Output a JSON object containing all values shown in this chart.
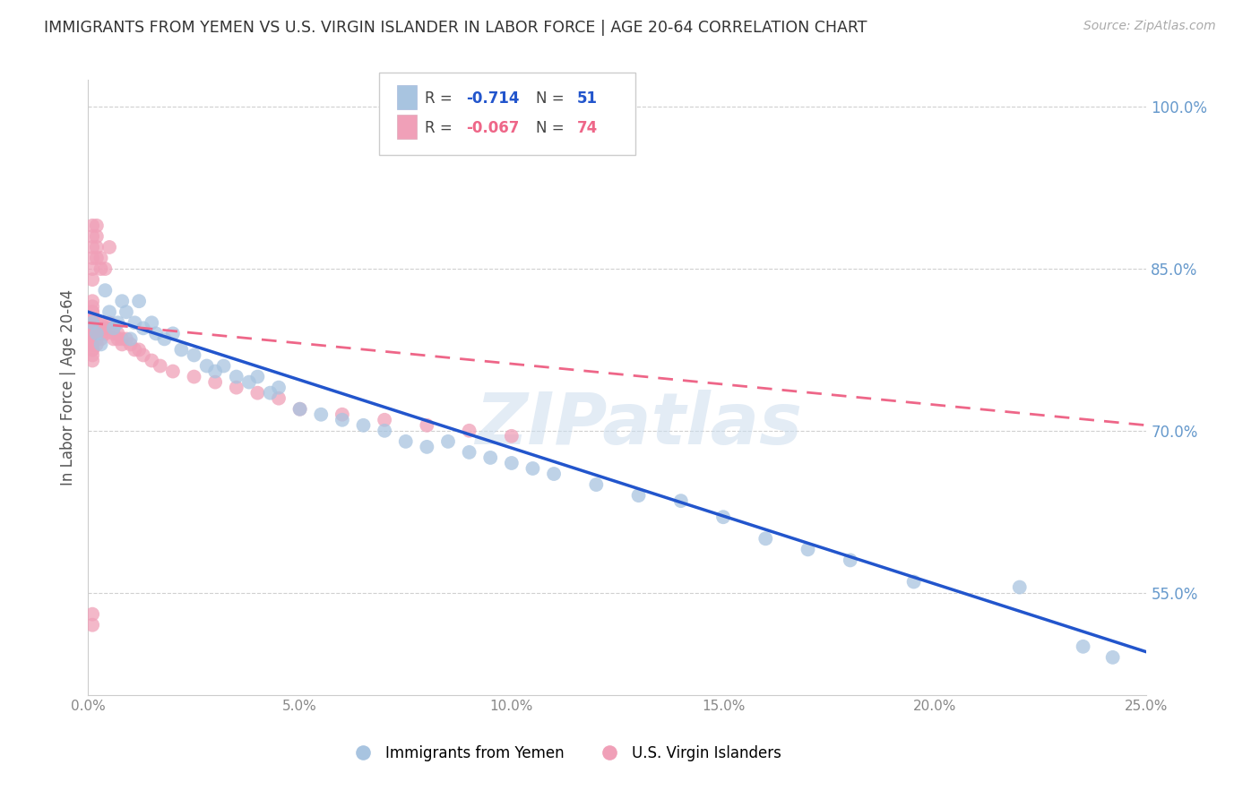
{
  "title": "IMMIGRANTS FROM YEMEN VS U.S. VIRGIN ISLANDER IN LABOR FORCE | AGE 20-64 CORRELATION CHART",
  "source": "Source: ZipAtlas.com",
  "ylabel": "In Labor Force | Age 20-64",
  "xlim": [
    0.0,
    0.25
  ],
  "ylim": [
    0.455,
    1.025
  ],
  "right_yticks": [
    1.0,
    0.85,
    0.7,
    0.55
  ],
  "right_yticklabels": [
    "100.0%",
    "85.0%",
    "70.0%",
    "55.0%"
  ],
  "xticks": [
    0.0,
    0.05,
    0.1,
    0.15,
    0.2,
    0.25
  ],
  "grid_color": "#d0d0d0",
  "background_color": "#ffffff",
  "watermark": "ZIPatlas",
  "blue_color": "#a8c4e0",
  "pink_color": "#f0a0b8",
  "blue_line_color": "#2255cc",
  "pink_line_color": "#ee6688",
  "blue_scatter_x": [
    0.001,
    0.002,
    0.003,
    0.004,
    0.005,
    0.006,
    0.007,
    0.008,
    0.009,
    0.01,
    0.011,
    0.012,
    0.013,
    0.015,
    0.016,
    0.018,
    0.02,
    0.022,
    0.025,
    0.028,
    0.03,
    0.032,
    0.035,
    0.038,
    0.04,
    0.043,
    0.045,
    0.05,
    0.055,
    0.06,
    0.065,
    0.07,
    0.075,
    0.08,
    0.085,
    0.09,
    0.095,
    0.1,
    0.105,
    0.11,
    0.12,
    0.13,
    0.14,
    0.15,
    0.16,
    0.17,
    0.18,
    0.195,
    0.22,
    0.235,
    0.242
  ],
  "blue_scatter_y": [
    0.8,
    0.79,
    0.78,
    0.83,
    0.81,
    0.795,
    0.8,
    0.82,
    0.81,
    0.785,
    0.8,
    0.82,
    0.795,
    0.8,
    0.79,
    0.785,
    0.79,
    0.775,
    0.77,
    0.76,
    0.755,
    0.76,
    0.75,
    0.745,
    0.75,
    0.735,
    0.74,
    0.72,
    0.715,
    0.71,
    0.705,
    0.7,
    0.69,
    0.685,
    0.69,
    0.68,
    0.675,
    0.67,
    0.665,
    0.66,
    0.65,
    0.64,
    0.635,
    0.62,
    0.6,
    0.59,
    0.58,
    0.56,
    0.555,
    0.5,
    0.49
  ],
  "pink_scatter_x": [
    0.001,
    0.001,
    0.001,
    0.001,
    0.001,
    0.001,
    0.001,
    0.001,
    0.001,
    0.001,
    0.001,
    0.001,
    0.001,
    0.001,
    0.001,
    0.001,
    0.001,
    0.001,
    0.001,
    0.001,
    0.002,
    0.002,
    0.002,
    0.002,
    0.002,
    0.003,
    0.003,
    0.003,
    0.003,
    0.004,
    0.004,
    0.005,
    0.005,
    0.006,
    0.006,
    0.007,
    0.007,
    0.008,
    0.008,
    0.009,
    0.01,
    0.011,
    0.012,
    0.013,
    0.015,
    0.017,
    0.02,
    0.025,
    0.03,
    0.035,
    0.04,
    0.045,
    0.05,
    0.06,
    0.07,
    0.08,
    0.09,
    0.1,
    0.001,
    0.001,
    0.001,
    0.001,
    0.002,
    0.002,
    0.003,
    0.003,
    0.004,
    0.005,
    0.001,
    0.001,
    0.002,
    0.002,
    0.001,
    0.001
  ],
  "pink_scatter_y": [
    0.8,
    0.81,
    0.795,
    0.785,
    0.78,
    0.775,
    0.79,
    0.8,
    0.82,
    0.815,
    0.81,
    0.805,
    0.8,
    0.795,
    0.79,
    0.785,
    0.78,
    0.775,
    0.77,
    0.765,
    0.8,
    0.795,
    0.79,
    0.785,
    0.78,
    0.8,
    0.795,
    0.79,
    0.785,
    0.795,
    0.79,
    0.8,
    0.795,
    0.79,
    0.785,
    0.79,
    0.785,
    0.785,
    0.78,
    0.785,
    0.78,
    0.775,
    0.775,
    0.77,
    0.765,
    0.76,
    0.755,
    0.75,
    0.745,
    0.74,
    0.735,
    0.73,
    0.72,
    0.715,
    0.71,
    0.705,
    0.7,
    0.695,
    0.87,
    0.86,
    0.85,
    0.84,
    0.87,
    0.86,
    0.86,
    0.85,
    0.85,
    0.87,
    0.88,
    0.89,
    0.89,
    0.88,
    0.53,
    0.52
  ],
  "blue_trend_x": [
    0.0,
    0.25
  ],
  "blue_trend_y": [
    0.81,
    0.495
  ],
  "pink_trend_x": [
    0.0,
    0.25
  ],
  "pink_trend_y": [
    0.8,
    0.705
  ]
}
